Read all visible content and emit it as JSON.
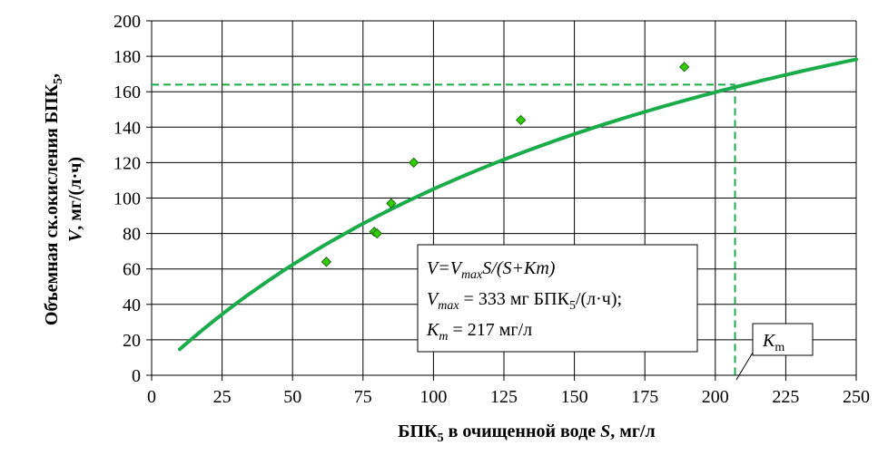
{
  "chart_data": {
    "type": "scatter",
    "xlim": [
      0,
      250
    ],
    "ylim": [
      0,
      200
    ],
    "x_ticks": [
      0,
      25,
      50,
      75,
      100,
      125,
      150,
      175,
      200,
      225,
      250
    ],
    "y_ticks": [
      0,
      20,
      40,
      60,
      80,
      100,
      120,
      140,
      160,
      180,
      200
    ],
    "grid": true,
    "xlabel": {
      "main": "БПК",
      "sub": "5",
      "middle": " в очищенной воде ",
      "var": "S",
      "unit": ", мг/л"
    },
    "ylabel": {
      "line1_main": "Объемная ск.окисления БПК",
      "line1_sub": "5",
      "line1_end": ",",
      "line2_var": "V",
      "line2_unit": ", мг/(л·ч)"
    },
    "series": [
      {
        "type": "scatter",
        "marker": "diamond",
        "color": "#33cc00",
        "points": [
          {
            "x": 62,
            "y": 64
          },
          {
            "x": 79,
            "y": 81
          },
          {
            "x": 80,
            "y": 80
          },
          {
            "x": 85,
            "y": 97
          },
          {
            "x": 93,
            "y": 120
          },
          {
            "x": 131,
            "y": 144
          },
          {
            "x": 189,
            "y": 174
          }
        ]
      },
      {
        "type": "line",
        "color": "#1aab4b",
        "model": {
          "vmax": 333,
          "km": 217
        },
        "x_range": [
          10,
          250
        ]
      }
    ],
    "reference_lines": {
      "color": "#1aab4b",
      "y_value": 164,
      "x_value": 207
    },
    "annotation": {
      "formula_V": "V",
      "formula_eq": "=V",
      "formula_sub": "max",
      "formula_rest": "S/(S+Km)",
      "line2_var": "V",
      "line2_sub": "max",
      "line2_rest": " = 333 мг БПК",
      "line2_sub5": "5",
      "line2_end": "/(л·ч);",
      "line3_var": "K",
      "line3_sub": "m",
      "line3_rest": " = 217 мг/л"
    },
    "km_callout": {
      "var": "K",
      "sub": "m"
    }
  }
}
